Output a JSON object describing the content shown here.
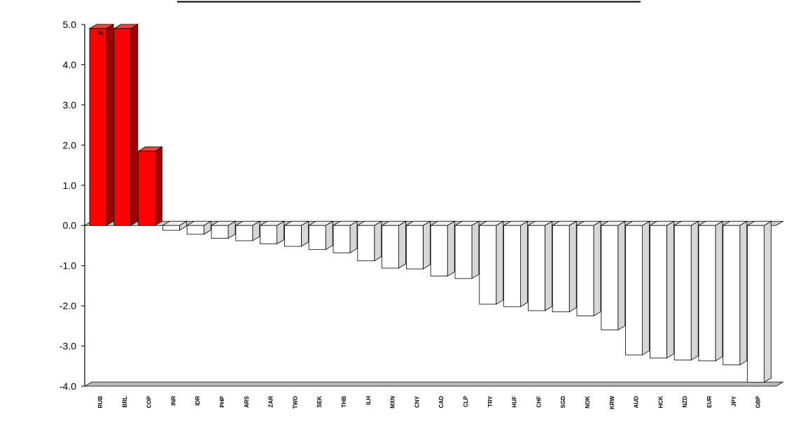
{
  "chart_data": {
    "type": "bar",
    "title": "",
    "xlabel": "",
    "ylabel": "",
    "ylim": [
      -4.0,
      5.0
    ],
    "yticks": [
      "5.0",
      "4.0",
      "3.0",
      "2.0",
      "1.0",
      "0.0",
      "-1.0",
      "-2.0",
      "-3.0",
      "-4.0"
    ],
    "grid": false,
    "legend": "none",
    "positive_color": "#ff0000",
    "negative_color": "#ffffff",
    "categories": [
      "RUB",
      "BRL",
      "COP",
      "INR",
      "IDR",
      "PHP",
      "ARS",
      "ZAR",
      "TWD",
      "SEK",
      "THB",
      "ILH",
      "MXN",
      "CNY",
      "CAD",
      "CLP",
      "TRY",
      "HUF",
      "CHF",
      "SGD",
      "NOK",
      "KRW",
      "AUD",
      "HCK",
      "NZD",
      "EUR",
      "JPY",
      "GBP"
    ],
    "values": [
      4.9,
      4.9,
      1.85,
      -0.12,
      -0.22,
      -0.32,
      -0.38,
      -0.46,
      -0.52,
      -0.6,
      -0.68,
      -0.88,
      -1.06,
      -1.08,
      -1.26,
      -1.32,
      -1.96,
      -2.02,
      -2.12,
      -2.15,
      -2.25,
      -2.6,
      -3.22,
      -3.3,
      -3.35,
      -3.37,
      -3.47,
      -3.9
    ],
    "data_labels": [
      {
        "index": 0,
        "text": "%"
      }
    ]
  }
}
